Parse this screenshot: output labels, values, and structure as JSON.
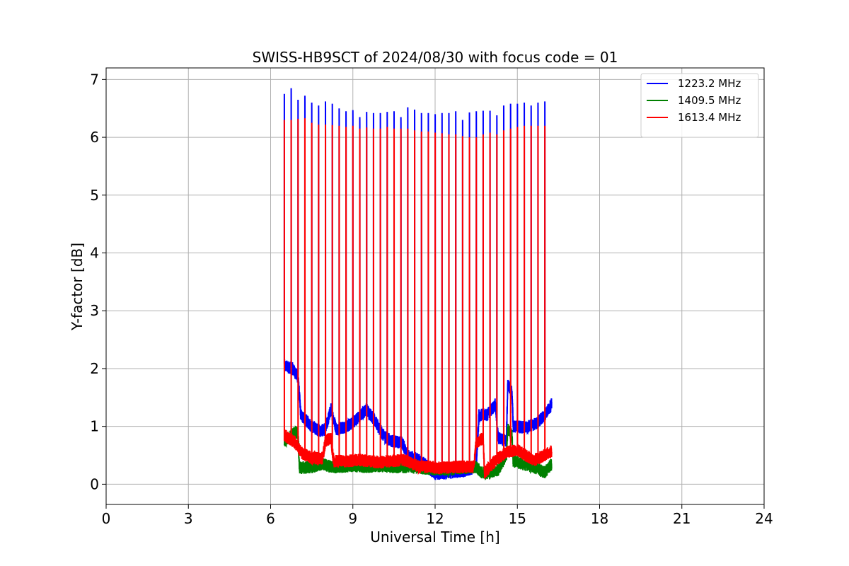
{
  "chart_data": {
    "type": "line",
    "title": "SWISS-HB9SCT of 2024/08/30 with focus code = 01",
    "xlabel": "Universal Time [h]",
    "ylabel": "Y-factor [dB]",
    "xlim": [
      0,
      24
    ],
    "ylim": [
      -0.35,
      7.2
    ],
    "xticks": [
      0,
      3,
      6,
      9,
      12,
      15,
      18,
      21,
      24
    ],
    "yticks": [
      0,
      1,
      2,
      3,
      4,
      5,
      6,
      7
    ],
    "grid": true,
    "legend_position": "top-right",
    "spike_times": [
      6.5,
      6.75,
      7.0,
      7.25,
      7.5,
      7.75,
      8.0,
      8.25,
      8.5,
      8.75,
      9.0,
      9.25,
      9.5,
      9.75,
      10.0,
      10.25,
      10.5,
      10.75,
      11.0,
      11.25,
      11.5,
      11.75,
      12.0,
      12.25,
      12.5,
      12.75,
      13.0,
      13.25,
      13.5,
      13.75,
      14.0,
      14.25,
      14.5,
      14.75,
      15.0,
      15.25,
      15.5,
      15.75,
      16.0
    ],
    "series": [
      {
        "name": "1223.2 MHz",
        "color": "#0000ff",
        "spike_peaks": [
          6.75,
          6.85,
          6.65,
          6.72,
          6.6,
          6.55,
          6.62,
          6.58,
          6.5,
          6.45,
          6.47,
          6.35,
          6.44,
          6.42,
          6.42,
          6.44,
          6.45,
          6.35,
          6.52,
          6.48,
          6.42,
          6.42,
          6.4,
          6.42,
          6.42,
          6.45,
          6.3,
          6.43,
          6.45,
          6.46,
          6.46,
          6.38,
          6.55,
          6.58,
          6.58,
          6.6,
          6.55,
          6.6,
          6.62
        ],
        "baseline": [
          [
            6.5,
            2.05
          ],
          [
            6.8,
            2.0
          ],
          [
            7.0,
            1.85
          ],
          [
            7.1,
            1.2
          ],
          [
            7.5,
            1.0
          ],
          [
            7.8,
            0.92
          ],
          [
            8.0,
            0.95
          ],
          [
            8.2,
            1.3
          ],
          [
            8.4,
            0.95
          ],
          [
            8.8,
            1.0
          ],
          [
            9.2,
            1.15
          ],
          [
            9.5,
            1.3
          ],
          [
            9.8,
            1.1
          ],
          [
            10.1,
            0.85
          ],
          [
            10.4,
            0.75
          ],
          [
            10.8,
            0.72
          ],
          [
            11.0,
            0.5
          ],
          [
            11.5,
            0.4
          ],
          [
            12.0,
            0.18
          ],
          [
            12.5,
            0.2
          ],
          [
            13.0,
            0.22
          ],
          [
            13.5,
            0.3
          ],
          [
            13.6,
            1.2
          ],
          [
            13.9,
            1.2
          ],
          [
            14.2,
            1.38
          ],
          [
            14.3,
            0.8
          ],
          [
            14.6,
            0.75
          ],
          [
            14.65,
            1.72
          ],
          [
            14.8,
            1.6
          ],
          [
            14.85,
            1.0
          ],
          [
            15.3,
            0.98
          ],
          [
            15.7,
            1.05
          ],
          [
            16.0,
            1.2
          ],
          [
            16.25,
            1.38
          ]
        ]
      },
      {
        "name": "1409.5 MHz",
        "color": "#008000",
        "spike_peaks": [],
        "baseline": [
          [
            6.5,
            0.75
          ],
          [
            6.9,
            0.9
          ],
          [
            7.0,
            0.88
          ],
          [
            7.05,
            0.28
          ],
          [
            7.5,
            0.3
          ],
          [
            7.9,
            0.35
          ],
          [
            8.2,
            0.3
          ],
          [
            8.5,
            0.3
          ],
          [
            9.0,
            0.32
          ],
          [
            9.5,
            0.3
          ],
          [
            10.0,
            0.32
          ],
          [
            10.5,
            0.3
          ],
          [
            11.0,
            0.3
          ],
          [
            11.5,
            0.28
          ],
          [
            12.0,
            0.26
          ],
          [
            12.5,
            0.25
          ],
          [
            13.0,
            0.28
          ],
          [
            13.5,
            0.3
          ],
          [
            13.7,
            0.2
          ],
          [
            14.0,
            0.2
          ],
          [
            14.3,
            0.25
          ],
          [
            14.6,
            0.5
          ],
          [
            14.65,
            0.95
          ],
          [
            14.8,
            0.85
          ],
          [
            14.85,
            0.4
          ],
          [
            15.2,
            0.35
          ],
          [
            15.6,
            0.3
          ],
          [
            16.0,
            0.2
          ],
          [
            16.25,
            0.35
          ]
        ]
      },
      {
        "name": "1613.4 MHz",
        "color": "#ff0000",
        "spike_peaks": [
          6.3,
          6.3,
          6.32,
          6.33,
          6.25,
          6.22,
          6.22,
          6.21,
          6.2,
          6.18,
          6.2,
          6.15,
          6.17,
          6.15,
          6.15,
          6.18,
          6.15,
          6.15,
          6.15,
          6.12,
          6.1,
          6.1,
          6.08,
          6.07,
          6.05,
          6.05,
          6.02,
          6.0,
          6.0,
          6.05,
          6.08,
          6.05,
          6.12,
          6.15,
          6.18,
          6.2,
          6.2,
          6.2,
          6.2
        ],
        "baseline": [
          [
            6.5,
            0.85
          ],
          [
            6.9,
            0.72
          ],
          [
            7.1,
            0.55
          ],
          [
            7.5,
            0.45
          ],
          [
            7.9,
            0.45
          ],
          [
            8.0,
            0.75
          ],
          [
            8.2,
            0.8
          ],
          [
            8.3,
            0.4
          ],
          [
            8.8,
            0.4
          ],
          [
            9.2,
            0.42
          ],
          [
            9.6,
            0.4
          ],
          [
            10.0,
            0.38
          ],
          [
            10.4,
            0.4
          ],
          [
            10.8,
            0.42
          ],
          [
            11.0,
            0.4
          ],
          [
            11.4,
            0.3
          ],
          [
            11.8,
            0.3
          ],
          [
            12.2,
            0.28
          ],
          [
            12.6,
            0.3
          ],
          [
            13.0,
            0.3
          ],
          [
            13.4,
            0.3
          ],
          [
            13.5,
            0.72
          ],
          [
            13.75,
            0.8
          ],
          [
            13.8,
            0.2
          ],
          [
            14.0,
            0.3
          ],
          [
            14.3,
            0.45
          ],
          [
            14.6,
            0.55
          ],
          [
            15.0,
            0.6
          ],
          [
            15.3,
            0.5
          ],
          [
            15.6,
            0.42
          ],
          [
            16.0,
            0.5
          ],
          [
            16.25,
            0.58
          ]
        ]
      }
    ]
  }
}
